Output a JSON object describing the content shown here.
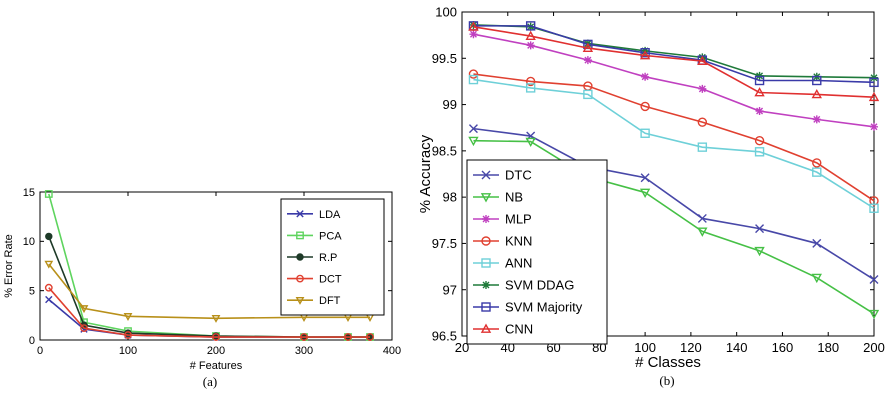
{
  "chart_data": [
    {
      "type": "line",
      "caption": "(a)",
      "xlabel": "# Features",
      "ylabel": "% Error Rate",
      "xlim": [
        0,
        400
      ],
      "ylim": [
        0,
        15
      ],
      "xticks": [
        0,
        100,
        200,
        300,
        400
      ],
      "yticks": [
        0,
        5,
        10,
        15
      ],
      "grid": false,
      "legend_position": "right",
      "series": [
        {
          "name": "LDA",
          "color": "#3a3aa8",
          "marker": "x",
          "x": [
            10,
            50,
            100,
            200,
            300,
            350,
            375
          ],
          "y": [
            4.1,
            1.1,
            0.5,
            0.3,
            0.3,
            0.3,
            0.3
          ]
        },
        {
          "name": "PCA",
          "color": "#5ed45e",
          "marker": "square",
          "x": [
            10,
            50,
            100,
            200,
            300,
            350,
            375
          ],
          "y": [
            14.8,
            1.8,
            0.9,
            0.4,
            0.3,
            0.3,
            0.3
          ]
        },
        {
          "name": "R.P",
          "color": "#1e3a28",
          "marker": "dot",
          "x": [
            10,
            50,
            100,
            200,
            300,
            350,
            375
          ],
          "y": [
            10.5,
            1.5,
            0.7,
            0.4,
            0.3,
            0.3,
            0.3
          ]
        },
        {
          "name": "DCT",
          "color": "#e04030",
          "marker": "circle",
          "x": [
            10,
            50,
            100,
            200,
            300,
            350,
            375
          ],
          "y": [
            5.3,
            1.2,
            0.5,
            0.3,
            0.3,
            0.3,
            0.3
          ]
        },
        {
          "name": "DFT",
          "color": "#b8901a",
          "marker": "triangle-down",
          "x": [
            10,
            50,
            100,
            200,
            300,
            350,
            375
          ],
          "y": [
            7.7,
            3.2,
            2.4,
            2.2,
            2.3,
            2.3,
            2.3
          ]
        }
      ]
    },
    {
      "type": "line",
      "caption": "(b)",
      "xlabel": "# Classes",
      "ylabel": "% Accuracy",
      "xlim": [
        20,
        200
      ],
      "ylim": [
        96.5,
        100
      ],
      "xticks": [
        20,
        40,
        60,
        80,
        100,
        120,
        140,
        160,
        180,
        200
      ],
      "yticks": [
        96.5,
        97,
        97.5,
        98,
        98.5,
        99,
        99.5,
        100
      ],
      "grid": false,
      "legend_position": "bottom-left",
      "series": [
        {
          "name": "DTC",
          "color": "#4848a8",
          "marker": "x",
          "x": [
            25,
            50,
            75,
            100,
            125,
            150,
            175,
            200
          ],
          "y": [
            98.74,
            98.66,
            98.33,
            98.21,
            97.77,
            97.66,
            97.5,
            97.11
          ]
        },
        {
          "name": "NB",
          "color": "#46c046",
          "marker": "triangle-down",
          "x": [
            25,
            50,
            75,
            100,
            125,
            150,
            175,
            200
          ],
          "y": [
            98.61,
            98.6,
            98.22,
            98.05,
            97.63,
            97.42,
            97.13,
            96.74
          ]
        },
        {
          "name": "MLP",
          "color": "#c040c0",
          "marker": "star",
          "x": [
            25,
            50,
            75,
            100,
            125,
            150,
            175,
            200
          ],
          "y": [
            99.76,
            99.64,
            99.48,
            99.3,
            99.17,
            98.93,
            98.84,
            98.76
          ]
        },
        {
          "name": "KNN",
          "color": "#e04030",
          "marker": "circle",
          "x": [
            25,
            50,
            75,
            100,
            125,
            150,
            175,
            200
          ],
          "y": [
            99.33,
            99.25,
            99.2,
            98.98,
            98.81,
            98.61,
            98.37,
            97.96
          ]
        },
        {
          "name": "ANN",
          "color": "#6ed0d8",
          "marker": "square",
          "x": [
            25,
            50,
            75,
            100,
            125,
            150,
            175,
            200
          ],
          "y": [
            99.27,
            99.18,
            99.11,
            98.69,
            98.54,
            98.49,
            98.27,
            97.88
          ]
        },
        {
          "name": "SVM DDAG",
          "color": "#1f7a3a",
          "marker": "star",
          "x": [
            25,
            50,
            75,
            100,
            125,
            150,
            175,
            200
          ],
          "y": [
            99.86,
            99.84,
            99.66,
            99.58,
            99.51,
            99.31,
            99.3,
            99.29
          ]
        },
        {
          "name": "SVM Majority",
          "color": "#3a3aa8",
          "marker": "square",
          "x": [
            25,
            50,
            75,
            100,
            125,
            150,
            175,
            200
          ],
          "y": [
            99.85,
            99.85,
            99.65,
            99.56,
            99.48,
            99.26,
            99.26,
            99.24
          ]
        },
        {
          "name": "CNN",
          "color": "#e03030",
          "marker": "triangle-up",
          "x": [
            25,
            50,
            75,
            100,
            125,
            150,
            175,
            200
          ],
          "y": [
            99.84,
            99.74,
            99.61,
            99.53,
            99.47,
            99.13,
            99.11,
            99.08
          ]
        }
      ]
    }
  ]
}
